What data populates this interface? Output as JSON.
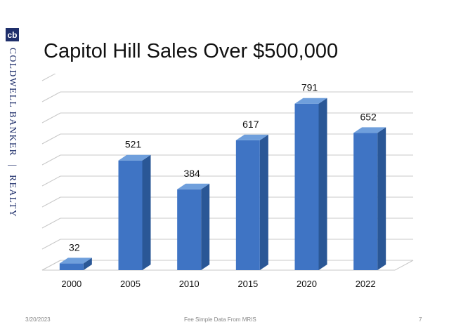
{
  "brand": {
    "logo_text": "cb",
    "name_part1": "COLDWELL BANKER",
    "separator": "|",
    "name_part2": "REALTY"
  },
  "title": "Capitol Hill Sales Over $500,000",
  "footer": {
    "date": "3/20/2023",
    "source": "Fee Simple Data From MRIS",
    "page": "7"
  },
  "colors": {
    "bar_front": "#3f74c4",
    "bar_side": "#2a5796",
    "bar_top": "#6f9fdc",
    "grid": "#c8c8c8",
    "brand": "#1f2f6b"
  },
  "chart_data": {
    "type": "bar",
    "title": "Capitol Hill Sales Over $500,000",
    "categories": [
      "2000",
      "2005",
      "2010",
      "2015",
      "2020",
      "2022"
    ],
    "values": [
      32,
      521,
      384,
      617,
      791,
      652
    ],
    "data_labels": [
      "32",
      "521",
      "384",
      "617",
      "791",
      "652"
    ],
    "xlabel": "",
    "ylabel": "",
    "ylim": [
      0,
      900
    ],
    "grid": true,
    "legend": "none",
    "style": "3d-column"
  }
}
